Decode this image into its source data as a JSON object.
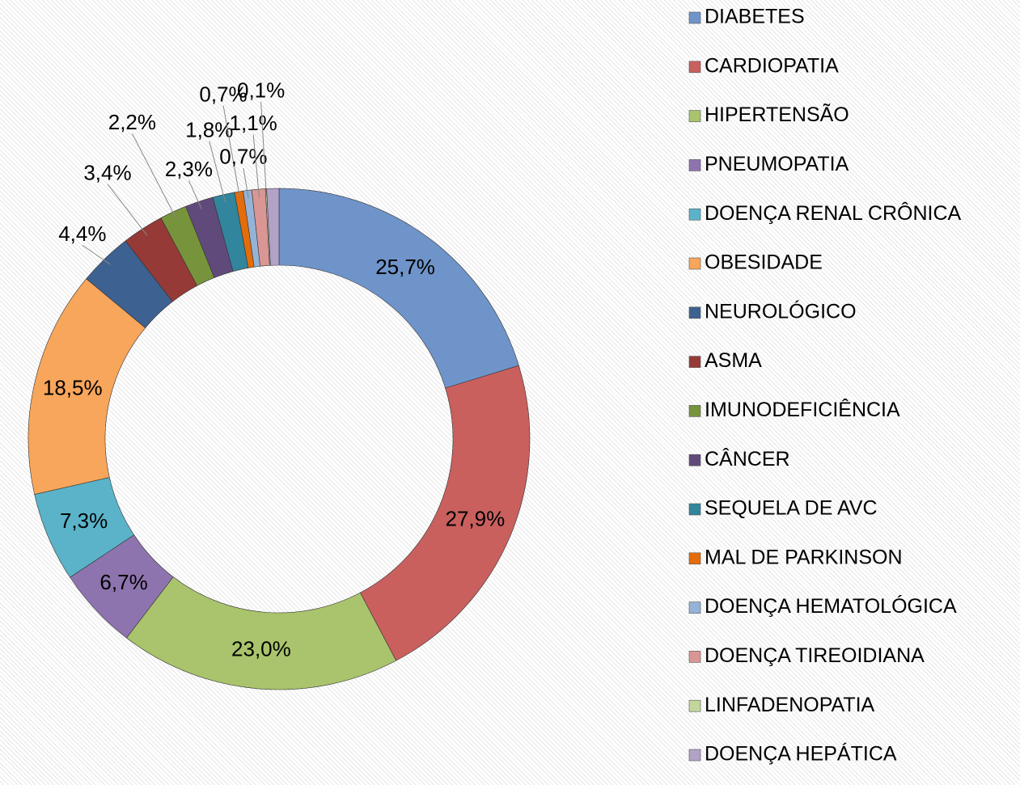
{
  "chart_data": {
    "type": "donut",
    "categories": [
      "DIABETES",
      "CARDIOPATIA",
      "HIPERTENSÃO",
      "PNEUMOPATIA",
      "DOENÇA RENAL CRÔNICA",
      "OBESIDADE",
      "NEUROLÓGICO",
      "ASMA",
      "IMUNODEFICIÊNCIA",
      "CÂNCER",
      "SEQUELA DE AVC",
      "MAL DE PARKINSON",
      "DOENÇA HEMATOLÓGICA",
      "DOENÇA TIREOIDIANA",
      "LINFADENOPATIA",
      "DOENÇA HEPÁTICA"
    ],
    "values": [
      25.7,
      27.9,
      23.0,
      6.7,
      7.3,
      18.5,
      4.4,
      3.4,
      2.2,
      2.3,
      1.8,
      0.7,
      0.7,
      1.1,
      0.1,
      1.0
    ],
    "value_labels": [
      "25,7%",
      "27,9%",
      "23,0%",
      "6,7%",
      "7,3%",
      "18,5%",
      "4,4%",
      "3,4%",
      "2,2%",
      "2,3%",
      "1,8%",
      "0,7%",
      "0,7%",
      "1,1%",
      "0,1%",
      null
    ],
    "colors": [
      "#6f94c9",
      "#c9605e",
      "#a9c46c",
      "#8e74ae",
      "#5ab3c9",
      "#f8a65b",
      "#3d6190",
      "#963a37",
      "#77933c",
      "#604a7b",
      "#31859c",
      "#e46c0a",
      "#95b3d7",
      "#d99694",
      "#c3d69b",
      "#b3a2c7"
    ],
    "legend": "right"
  }
}
